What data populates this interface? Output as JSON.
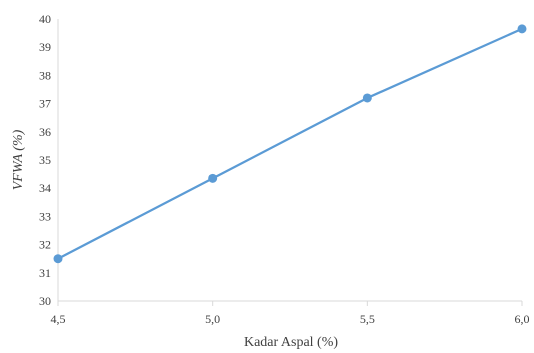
{
  "chart_data": {
    "type": "line",
    "x": [
      "4,5",
      "5,0",
      "5,5",
      "6,0"
    ],
    "y": [
      31.5,
      34.35,
      37.2,
      39.65
    ],
    "ylim": [
      30,
      40
    ],
    "yticks": [
      30,
      31,
      32,
      33,
      34,
      35,
      36,
      37,
      38,
      39,
      40
    ],
    "xlabel": "Kadar Aspal (%)",
    "ylabel": "VFWA (%)",
    "grid": false,
    "legend": "none",
    "series_color": "#5b9bd5",
    "axis_color": "#d9d9d9",
    "text_color": "#404040"
  }
}
